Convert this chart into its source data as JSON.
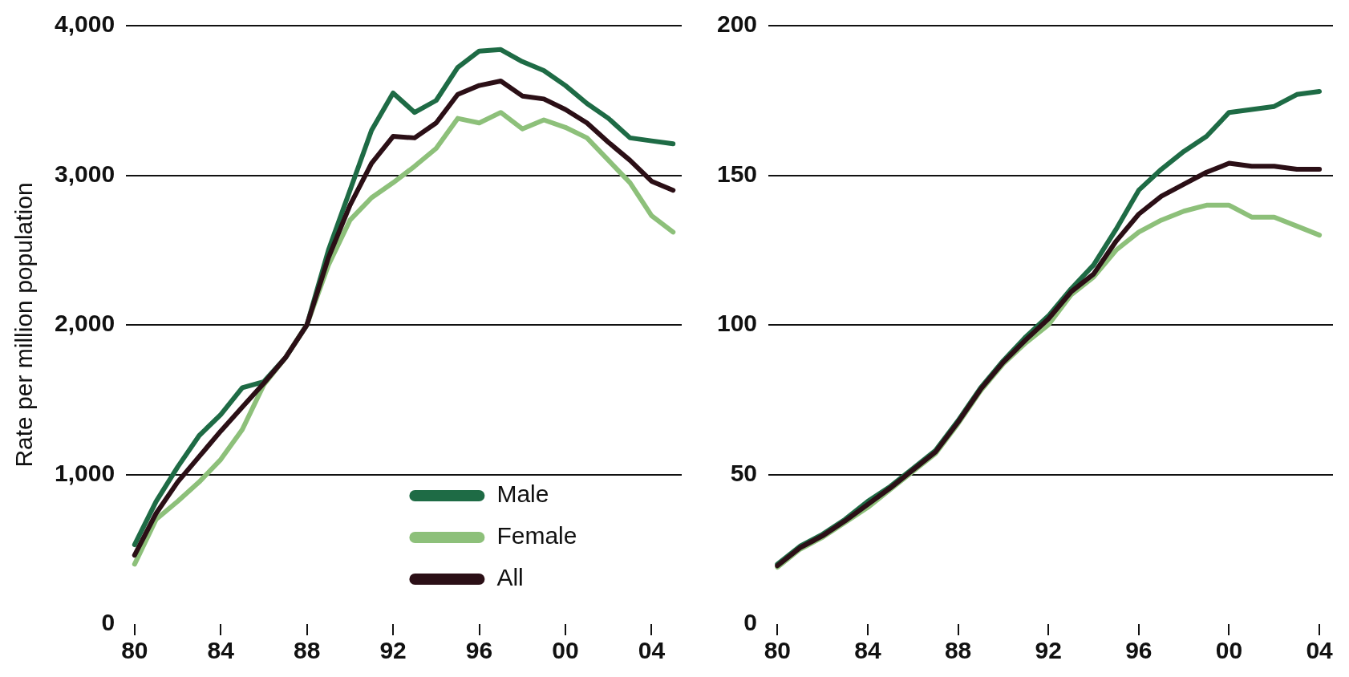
{
  "chart_data": [
    {
      "type": "line",
      "ylabel": "Rate per million population",
      "x": [
        1980,
        1981,
        1982,
        1983,
        1984,
        1985,
        1986,
        1987,
        1988,
        1989,
        1990,
        1991,
        1992,
        1993,
        1994,
        1995,
        1996,
        1997,
        1998,
        1999,
        2000,
        2001,
        2002,
        2003,
        2004,
        2005
      ],
      "xlim": [
        1979.6,
        2005.4
      ],
      "xticks": [
        {
          "value": 1980,
          "label": "80"
        },
        {
          "value": 1984,
          "label": "84"
        },
        {
          "value": 1988,
          "label": "88"
        },
        {
          "value": 1992,
          "label": "92"
        },
        {
          "value": 1996,
          "label": "96"
        },
        {
          "value": 2000,
          "label": "00"
        },
        {
          "value": 2004,
          "label": "04"
        }
      ],
      "ylim": [
        0,
        4000
      ],
      "yticks": [
        {
          "value": 0,
          "label": "0"
        },
        {
          "value": 1000,
          "label": "1,000"
        },
        {
          "value": 2000,
          "label": "2,000"
        },
        {
          "value": 3000,
          "label": "3,000"
        },
        {
          "value": 4000,
          "label": "4,000"
        }
      ],
      "grid": "y",
      "legend": "bottom right",
      "marker": "none",
      "series": [
        {
          "name": "Male",
          "color": "#1e6b45",
          "values": [
            530,
            820,
            1050,
            1260,
            1400,
            1580,
            1620,
            1780,
            2000,
            2500,
            2900,
            3300,
            3550,
            3420,
            3500,
            3720,
            3830,
            3840,
            3760,
            3700,
            3600,
            3480,
            3380,
            3250,
            3230,
            3210
          ]
        },
        {
          "name": "Female",
          "color": "#8dc07a",
          "values": [
            400,
            700,
            820,
            950,
            1100,
            1300,
            1600,
            1780,
            2000,
            2400,
            2700,
            2850,
            2950,
            3060,
            3180,
            3380,
            3350,
            3420,
            3310,
            3370,
            3320,
            3250,
            3100,
            2950,
            2730,
            2620
          ]
        },
        {
          "name": "All",
          "color": "#2b0f16",
          "values": [
            460,
            740,
            950,
            1120,
            1290,
            1450,
            1610,
            1780,
            2000,
            2450,
            2800,
            3080,
            3260,
            3250,
            3350,
            3540,
            3600,
            3630,
            3530,
            3510,
            3440,
            3350,
            3220,
            3100,
            2960,
            2900
          ]
        }
      ]
    },
    {
      "type": "line",
      "x": [
        1980,
        1981,
        1982,
        1983,
        1984,
        1985,
        1986,
        1987,
        1988,
        1989,
        1990,
        1991,
        1992,
        1993,
        1994,
        1995,
        1996,
        1997,
        1998,
        1999,
        2000,
        2001,
        2002,
        2003,
        2004
      ],
      "xlim": [
        1979.6,
        2004.6
      ],
      "xticks": [
        {
          "value": 1980,
          "label": "80"
        },
        {
          "value": 1984,
          "label": "84"
        },
        {
          "value": 1988,
          "label": "88"
        },
        {
          "value": 1992,
          "label": "92"
        },
        {
          "value": 1996,
          "label": "96"
        },
        {
          "value": 2000,
          "label": "00"
        },
        {
          "value": 2004,
          "label": "04"
        }
      ],
      "ylim": [
        0,
        200
      ],
      "yticks": [
        0,
        50,
        100,
        150,
        200
      ],
      "grid": "y",
      "marker": "none",
      "series": [
        {
          "color": "#1e6b45",
          "values": [
            20,
            26,
            30,
            35,
            41,
            46,
            52,
            58,
            68,
            79,
            88,
            96,
            103,
            112,
            120,
            132,
            145,
            152,
            158,
            163,
            171,
            172,
            173,
            177,
            178
          ]
        },
        {
          "color": "#8dc07a",
          "values": [
            19,
            25,
            29,
            34,
            39,
            45,
            51,
            57,
            67,
            78,
            87,
            94,
            100,
            110,
            116,
            125,
            131,
            135,
            138,
            140,
            140,
            136,
            136,
            133,
            130
          ]
        },
        {
          "color": "#2b0f16",
          "values": [
            19.5,
            25.5,
            29.5,
            34.5,
            40,
            45.5,
            51.5,
            57.5,
            67.5,
            78.5,
            87.5,
            95,
            102,
            111,
            117,
            128,
            137,
            143,
            147,
            151,
            154,
            153,
            153,
            152,
            152
          ]
        }
      ]
    }
  ]
}
